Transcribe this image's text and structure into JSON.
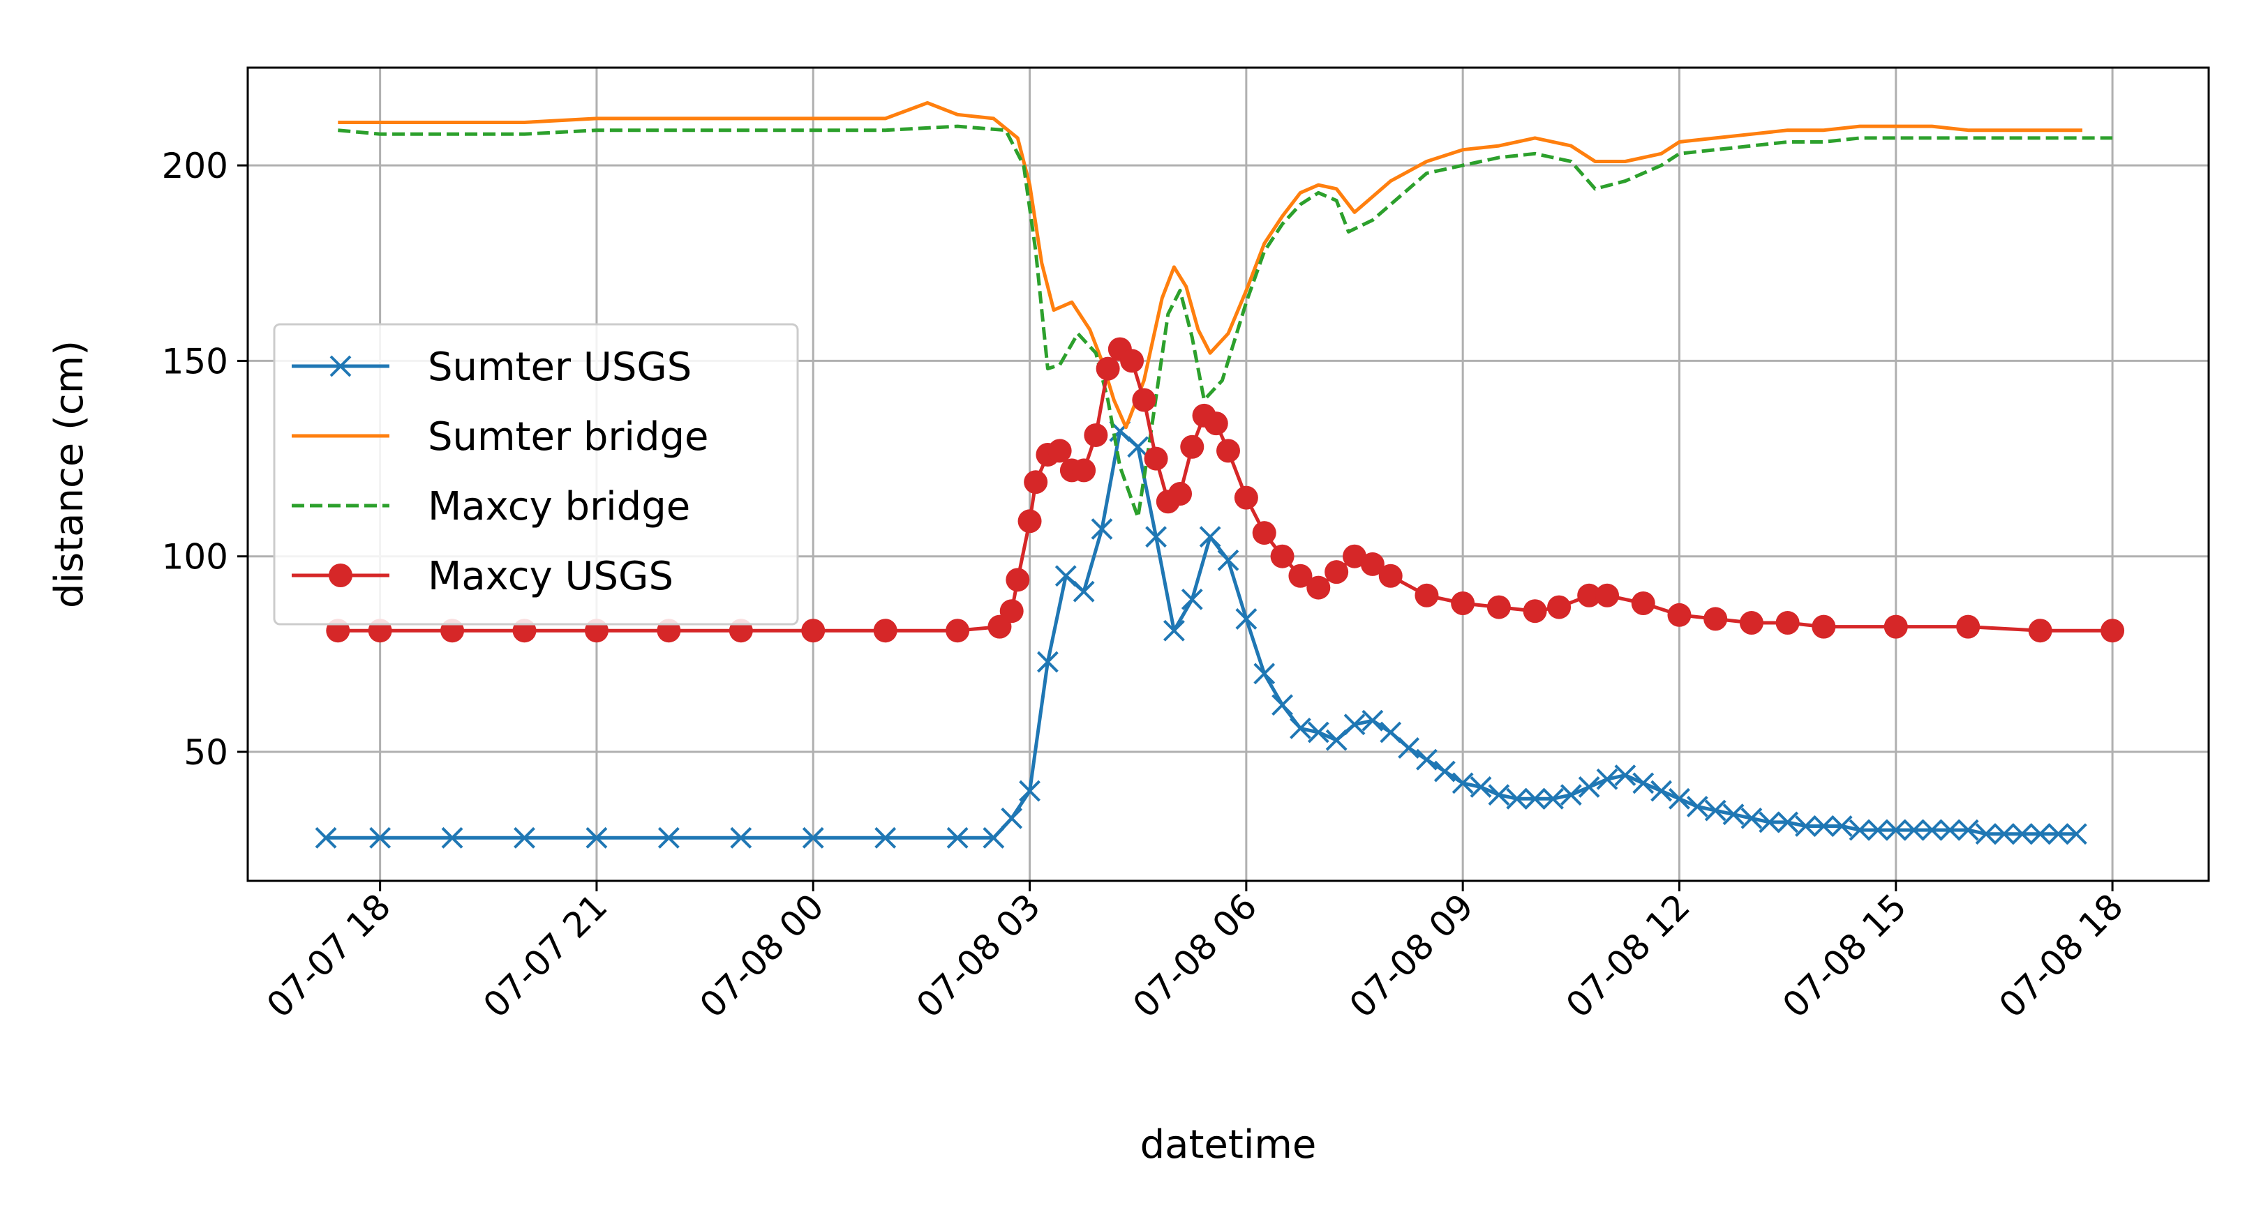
{
  "chart_data": {
    "type": "line",
    "xlabel": "datetime",
    "ylabel": "distance (cm)",
    "x_range": [
      "2023-07-07 16:10",
      "2023-07-08 19:20"
    ],
    "ylim": [
      17,
      225
    ],
    "x_ticks": [
      {
        "t": "2023-07-07 18:00",
        "label": "07-07 18"
      },
      {
        "t": "2023-07-07 21:00",
        "label": "07-07 21"
      },
      {
        "t": "2023-07-08 00:00",
        "label": "07-08 00"
      },
      {
        "t": "2023-07-08 03:00",
        "label": "07-08 03"
      },
      {
        "t": "2023-07-08 06:00",
        "label": "07-08 06"
      },
      {
        "t": "2023-07-08 09:00",
        "label": "07-08 09"
      },
      {
        "t": "2023-07-08 12:00",
        "label": "07-08 12"
      },
      {
        "t": "2023-07-08 15:00",
        "label": "07-08 15"
      },
      {
        "t": "2023-07-08 18:00",
        "label": "07-08 18"
      }
    ],
    "y_ticks": [
      50,
      100,
      150,
      200
    ],
    "grid": true,
    "legend_position": "center-left",
    "series": [
      {
        "name": "Sumter USGS",
        "color": "#1f77b4",
        "line_style": "solid",
        "marker": "x",
        "points": [
          [
            "2023-07-07 17:15",
            28
          ],
          [
            "2023-07-07 18:00",
            28
          ],
          [
            "2023-07-07 19:00",
            28
          ],
          [
            "2023-07-07 20:00",
            28
          ],
          [
            "2023-07-07 21:00",
            28
          ],
          [
            "2023-07-07 22:00",
            28
          ],
          [
            "2023-07-07 23:00",
            28
          ],
          [
            "2023-07-08 00:00",
            28
          ],
          [
            "2023-07-08 01:00",
            28
          ],
          [
            "2023-07-08 02:00",
            28
          ],
          [
            "2023-07-08 02:30",
            28
          ],
          [
            "2023-07-08 02:45",
            33
          ],
          [
            "2023-07-08 03:00",
            40
          ],
          [
            "2023-07-08 03:15",
            73
          ],
          [
            "2023-07-08 03:30",
            95
          ],
          [
            "2023-07-08 03:45",
            91
          ],
          [
            "2023-07-08 04:00",
            107
          ],
          [
            "2023-07-08 04:15",
            132
          ],
          [
            "2023-07-08 04:30",
            128
          ],
          [
            "2023-07-08 04:45",
            105
          ],
          [
            "2023-07-08 05:00",
            81
          ],
          [
            "2023-07-08 05:15",
            89
          ],
          [
            "2023-07-08 05:30",
            105
          ],
          [
            "2023-07-08 05:45",
            99
          ],
          [
            "2023-07-08 06:00",
            84
          ],
          [
            "2023-07-08 06:15",
            70
          ],
          [
            "2023-07-08 06:30",
            62
          ],
          [
            "2023-07-08 06:45",
            56
          ],
          [
            "2023-07-08 07:00",
            55
          ],
          [
            "2023-07-08 07:15",
            53
          ],
          [
            "2023-07-08 07:30",
            57
          ],
          [
            "2023-07-08 07:45",
            58
          ],
          [
            "2023-07-08 08:00",
            55
          ],
          [
            "2023-07-08 08:15",
            51
          ],
          [
            "2023-07-08 08:30",
            48
          ],
          [
            "2023-07-08 08:45",
            45
          ],
          [
            "2023-07-08 09:00",
            42
          ],
          [
            "2023-07-08 09:15",
            41
          ],
          [
            "2023-07-08 09:30",
            39
          ],
          [
            "2023-07-08 09:45",
            38
          ],
          [
            "2023-07-08 10:00",
            38
          ],
          [
            "2023-07-08 10:15",
            38
          ],
          [
            "2023-07-08 10:30",
            39
          ],
          [
            "2023-07-08 10:45",
            41
          ],
          [
            "2023-07-08 11:00",
            43
          ],
          [
            "2023-07-08 11:15",
            44
          ],
          [
            "2023-07-08 11:30",
            42
          ],
          [
            "2023-07-08 11:45",
            40
          ],
          [
            "2023-07-08 12:00",
            38
          ],
          [
            "2023-07-08 12:15",
            36
          ],
          [
            "2023-07-08 12:30",
            35
          ],
          [
            "2023-07-08 12:45",
            34
          ],
          [
            "2023-07-08 13:00",
            33
          ],
          [
            "2023-07-08 13:15",
            32
          ],
          [
            "2023-07-08 13:30",
            32
          ],
          [
            "2023-07-08 13:45",
            31
          ],
          [
            "2023-07-08 14:00",
            31
          ],
          [
            "2023-07-08 14:15",
            31
          ],
          [
            "2023-07-08 14:30",
            30
          ],
          [
            "2023-07-08 14:45",
            30
          ],
          [
            "2023-07-08 15:00",
            30
          ],
          [
            "2023-07-08 15:15",
            30
          ],
          [
            "2023-07-08 15:30",
            30
          ],
          [
            "2023-07-08 15:45",
            30
          ],
          [
            "2023-07-08 16:00",
            30
          ],
          [
            "2023-07-08 16:15",
            29
          ],
          [
            "2023-07-08 16:30",
            29
          ],
          [
            "2023-07-08 16:45",
            29
          ],
          [
            "2023-07-08 17:00",
            29
          ],
          [
            "2023-07-08 17:15",
            29
          ],
          [
            "2023-07-08 17:30",
            29
          ]
        ]
      },
      {
        "name": "Sumter bridge",
        "color": "#ff7f0e",
        "line_style": "solid",
        "marker": "none",
        "points": [
          [
            "2023-07-07 17:25",
            211
          ],
          [
            "2023-07-07 18:00",
            211
          ],
          [
            "2023-07-07 19:00",
            211
          ],
          [
            "2023-07-07 20:00",
            211
          ],
          [
            "2023-07-07 21:00",
            212
          ],
          [
            "2023-07-07 22:00",
            212
          ],
          [
            "2023-07-07 23:00",
            212
          ],
          [
            "2023-07-08 00:00",
            212
          ],
          [
            "2023-07-08 01:00",
            212
          ],
          [
            "2023-07-08 01:35",
            216
          ],
          [
            "2023-07-08 02:00",
            213
          ],
          [
            "2023-07-08 02:30",
            212
          ],
          [
            "2023-07-08 02:50",
            207
          ],
          [
            "2023-07-08 03:00",
            195
          ],
          [
            "2023-07-08 03:10",
            175
          ],
          [
            "2023-07-08 03:20",
            163
          ],
          [
            "2023-07-08 03:35",
            165
          ],
          [
            "2023-07-08 03:50",
            158
          ],
          [
            "2023-07-08 04:00",
            150
          ],
          [
            "2023-07-08 04:10",
            140
          ],
          [
            "2023-07-08 04:20",
            133
          ],
          [
            "2023-07-08 04:35",
            145
          ],
          [
            "2023-07-08 04:50",
            166
          ],
          [
            "2023-07-08 05:00",
            174
          ],
          [
            "2023-07-08 05:10",
            169
          ],
          [
            "2023-07-08 05:20",
            158
          ],
          [
            "2023-07-08 05:30",
            152
          ],
          [
            "2023-07-08 05:45",
            157
          ],
          [
            "2023-07-08 06:00",
            168
          ],
          [
            "2023-07-08 06:15",
            180
          ],
          [
            "2023-07-08 06:30",
            187
          ],
          [
            "2023-07-08 06:45",
            193
          ],
          [
            "2023-07-08 07:00",
            195
          ],
          [
            "2023-07-08 07:15",
            194
          ],
          [
            "2023-07-08 07:30",
            188
          ],
          [
            "2023-07-08 07:45",
            192
          ],
          [
            "2023-07-08 08:00",
            196
          ],
          [
            "2023-07-08 08:30",
            201
          ],
          [
            "2023-07-08 09:00",
            204
          ],
          [
            "2023-07-08 09:30",
            205
          ],
          [
            "2023-07-08 10:00",
            207
          ],
          [
            "2023-07-08 10:30",
            205
          ],
          [
            "2023-07-08 10:50",
            201
          ],
          [
            "2023-07-08 11:15",
            201
          ],
          [
            "2023-07-08 11:45",
            203
          ],
          [
            "2023-07-08 12:00",
            206
          ],
          [
            "2023-07-08 12:30",
            207
          ],
          [
            "2023-07-08 13:00",
            208
          ],
          [
            "2023-07-08 13:30",
            209
          ],
          [
            "2023-07-08 14:00",
            209
          ],
          [
            "2023-07-08 14:30",
            210
          ],
          [
            "2023-07-08 15:00",
            210
          ],
          [
            "2023-07-08 15:30",
            210
          ],
          [
            "2023-07-08 16:00",
            209
          ],
          [
            "2023-07-08 16:30",
            209
          ],
          [
            "2023-07-08 17:00",
            209
          ],
          [
            "2023-07-08 17:35",
            209
          ]
        ]
      },
      {
        "name": "Maxcy bridge",
        "color": "#2ca02c",
        "line_style": "dashed",
        "marker": "none",
        "points": [
          [
            "2023-07-07 17:25",
            209
          ],
          [
            "2023-07-07 18:00",
            208
          ],
          [
            "2023-07-07 19:00",
            208
          ],
          [
            "2023-07-07 20:00",
            208
          ],
          [
            "2023-07-07 21:00",
            209
          ],
          [
            "2023-07-07 22:00",
            209
          ],
          [
            "2023-07-07 23:00",
            209
          ],
          [
            "2023-07-08 00:00",
            209
          ],
          [
            "2023-07-08 01:00",
            209
          ],
          [
            "2023-07-08 02:00",
            210
          ],
          [
            "2023-07-08 02:40",
            209
          ],
          [
            "2023-07-08 02:55",
            200
          ],
          [
            "2023-07-08 03:05",
            178
          ],
          [
            "2023-07-08 03:15",
            148
          ],
          [
            "2023-07-08 03:25",
            149
          ],
          [
            "2023-07-08 03:40",
            157
          ],
          [
            "2023-07-08 03:55",
            152
          ],
          [
            "2023-07-08 04:05",
            140
          ],
          [
            "2023-07-08 04:15",
            123
          ],
          [
            "2023-07-08 04:30",
            110
          ],
          [
            "2023-07-08 04:40",
            130
          ],
          [
            "2023-07-08 04:55",
            162
          ],
          [
            "2023-07-08 05:05",
            168
          ],
          [
            "2023-07-08 05:15",
            156
          ],
          [
            "2023-07-08 05:25",
            140
          ],
          [
            "2023-07-08 05:40",
            145
          ],
          [
            "2023-07-08 06:00",
            165
          ],
          [
            "2023-07-08 06:15",
            178
          ],
          [
            "2023-07-08 06:30",
            185
          ],
          [
            "2023-07-08 06:45",
            190
          ],
          [
            "2023-07-08 07:00",
            193
          ],
          [
            "2023-07-08 07:15",
            191
          ],
          [
            "2023-07-08 07:25",
            183
          ],
          [
            "2023-07-08 07:45",
            186
          ],
          [
            "2023-07-08 08:00",
            190
          ],
          [
            "2023-07-08 08:30",
            198
          ],
          [
            "2023-07-08 09:00",
            200
          ],
          [
            "2023-07-08 09:30",
            202
          ],
          [
            "2023-07-08 10:00",
            203
          ],
          [
            "2023-07-08 10:30",
            201
          ],
          [
            "2023-07-08 10:50",
            194
          ],
          [
            "2023-07-08 11:15",
            196
          ],
          [
            "2023-07-08 11:45",
            200
          ],
          [
            "2023-07-08 12:00",
            203
          ],
          [
            "2023-07-08 12:30",
            204
          ],
          [
            "2023-07-08 13:00",
            205
          ],
          [
            "2023-07-08 13:30",
            206
          ],
          [
            "2023-07-08 14:00",
            206
          ],
          [
            "2023-07-08 14:30",
            207
          ],
          [
            "2023-07-08 15:00",
            207
          ],
          [
            "2023-07-08 15:30",
            207
          ],
          [
            "2023-07-08 16:00",
            207
          ],
          [
            "2023-07-08 16:30",
            207
          ],
          [
            "2023-07-08 17:00",
            207
          ],
          [
            "2023-07-08 18:00",
            207
          ]
        ]
      },
      {
        "name": "Maxcy USGS",
        "color": "#d62728",
        "line_style": "solid",
        "marker": "circle",
        "points": [
          [
            "2023-07-07 17:25",
            81
          ],
          [
            "2023-07-07 18:00",
            81
          ],
          [
            "2023-07-07 19:00",
            81
          ],
          [
            "2023-07-07 20:00",
            81
          ],
          [
            "2023-07-07 21:00",
            81
          ],
          [
            "2023-07-07 22:00",
            81
          ],
          [
            "2023-07-07 23:00",
            81
          ],
          [
            "2023-07-08 00:00",
            81
          ],
          [
            "2023-07-08 01:00",
            81
          ],
          [
            "2023-07-08 02:00",
            81
          ],
          [
            "2023-07-08 02:35",
            82
          ],
          [
            "2023-07-08 02:45",
            86
          ],
          [
            "2023-07-08 02:50",
            94
          ],
          [
            "2023-07-08 03:00",
            109
          ],
          [
            "2023-07-08 03:05",
            119
          ],
          [
            "2023-07-08 03:15",
            126
          ],
          [
            "2023-07-08 03:25",
            127
          ],
          [
            "2023-07-08 03:35",
            122
          ],
          [
            "2023-07-08 03:45",
            122
          ],
          [
            "2023-07-08 03:55",
            131
          ],
          [
            "2023-07-08 04:05",
            148
          ],
          [
            "2023-07-08 04:15",
            153
          ],
          [
            "2023-07-08 04:25",
            150
          ],
          [
            "2023-07-08 04:35",
            140
          ],
          [
            "2023-07-08 04:45",
            125
          ],
          [
            "2023-07-08 04:55",
            114
          ],
          [
            "2023-07-08 05:05",
            116
          ],
          [
            "2023-07-08 05:15",
            128
          ],
          [
            "2023-07-08 05:25",
            136
          ],
          [
            "2023-07-08 05:35",
            134
          ],
          [
            "2023-07-08 05:45",
            127
          ],
          [
            "2023-07-08 06:00",
            115
          ],
          [
            "2023-07-08 06:15",
            106
          ],
          [
            "2023-07-08 06:30",
            100
          ],
          [
            "2023-07-08 06:45",
            95
          ],
          [
            "2023-07-08 07:00",
            92
          ],
          [
            "2023-07-08 07:15",
            96
          ],
          [
            "2023-07-08 07:30",
            100
          ],
          [
            "2023-07-08 07:45",
            98
          ],
          [
            "2023-07-08 08:00",
            95
          ],
          [
            "2023-07-08 08:30",
            90
          ],
          [
            "2023-07-08 09:00",
            88
          ],
          [
            "2023-07-08 09:30",
            87
          ],
          [
            "2023-07-08 10:00",
            86
          ],
          [
            "2023-07-08 10:20",
            87
          ],
          [
            "2023-07-08 10:45",
            90
          ],
          [
            "2023-07-08 11:00",
            90
          ],
          [
            "2023-07-08 11:30",
            88
          ],
          [
            "2023-07-08 12:00",
            85
          ],
          [
            "2023-07-08 12:30",
            84
          ],
          [
            "2023-07-08 13:00",
            83
          ],
          [
            "2023-07-08 13:30",
            83
          ],
          [
            "2023-07-08 14:00",
            82
          ],
          [
            "2023-07-08 15:00",
            82
          ],
          [
            "2023-07-08 16:00",
            82
          ],
          [
            "2023-07-08 17:00",
            81
          ],
          [
            "2023-07-08 18:00",
            81
          ]
        ]
      }
    ]
  }
}
